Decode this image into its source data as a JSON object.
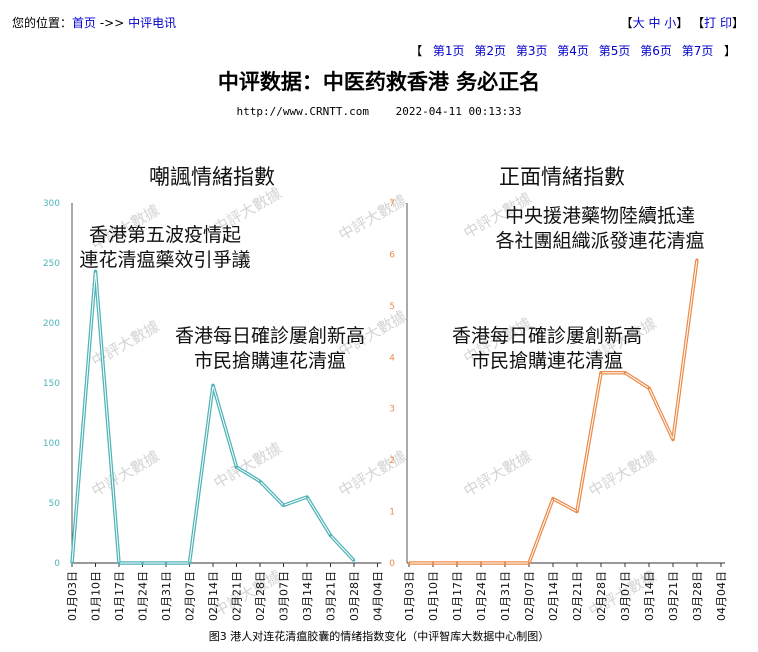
{
  "breadcrumb": {
    "prefix": "您的位置：",
    "home": "首页",
    "sep": " ->> ",
    "section": "中评电讯"
  },
  "font_controls": {
    "open": "【",
    "large": "大",
    "medium": "中",
    "small": "小",
    "close": "】",
    "print_open": "【",
    "print": "打 印",
    "print_close": "】"
  },
  "pager": {
    "open": "【",
    "pages": [
      "第1页",
      "第2页",
      "第3页",
      "第4页",
      "第5页",
      "第6页",
      "第7页"
    ],
    "close": "】"
  },
  "article": {
    "title": "中评数据：中医药救香港 务必正名",
    "url": "http://www.CRNTT.com",
    "datetime": "2022-04-11 00:13:33"
  },
  "figure_caption": "图3 港人对连花清瘟胶囊的情绪指数变化（中评智库大数据中心制图）",
  "watermark": "中評大數據",
  "chart_data": [
    {
      "type": "line",
      "title": "嘲諷情緒指數",
      "color": "#4fb3b8",
      "x": [
        "01月03日",
        "01月10日",
        "01月17日",
        "01月24日",
        "01月31日",
        "02月07日",
        "02月14日",
        "02月21日",
        "02月28日",
        "03月07日",
        "03月14日",
        "03月21日",
        "03月28日",
        "04月04日"
      ],
      "y": [
        0,
        243,
        0,
        0,
        0,
        0,
        148,
        80,
        68,
        48,
        55,
        23,
        2,
        null
      ],
      "ylim": [
        0,
        300
      ],
      "yticks": [
        0,
        50,
        100,
        150,
        200,
        250,
        300
      ],
      "annotations": [
        {
          "lines": [
            "香港第五波疫情起",
            "連花清瘟藥效引爭議"
          ]
        },
        {
          "lines": [
            "香港每日確診屢創新高",
            "市民搶購連花清瘟"
          ]
        }
      ]
    },
    {
      "type": "line",
      "title": "正面情緒指數",
      "color": "#ec8c4c",
      "x": [
        "01月03日",
        "01月10日",
        "01月17日",
        "01月24日",
        "01月31日",
        "02月07日",
        "02月14日",
        "02月21日",
        "02月28日",
        "03月07日",
        "03月14日",
        "03月21日",
        "03月28日",
        "04月04日"
      ],
      "y": [
        0,
        0,
        0,
        0,
        0,
        0,
        1.25,
        1.0,
        3.7,
        3.7,
        3.4,
        2.4,
        5.9,
        null
      ],
      "ylim": [
        0,
        7
      ],
      "yticks": [
        0,
        1,
        2,
        3,
        4,
        5,
        6,
        7
      ],
      "annotations": [
        {
          "lines": [
            "中央援港藥物陸續抵達",
            "各社團組織派發連花清瘟"
          ]
        },
        {
          "lines": [
            "香港每日確診屢創新高",
            "市民搶購連花清瘟"
          ]
        }
      ]
    }
  ]
}
